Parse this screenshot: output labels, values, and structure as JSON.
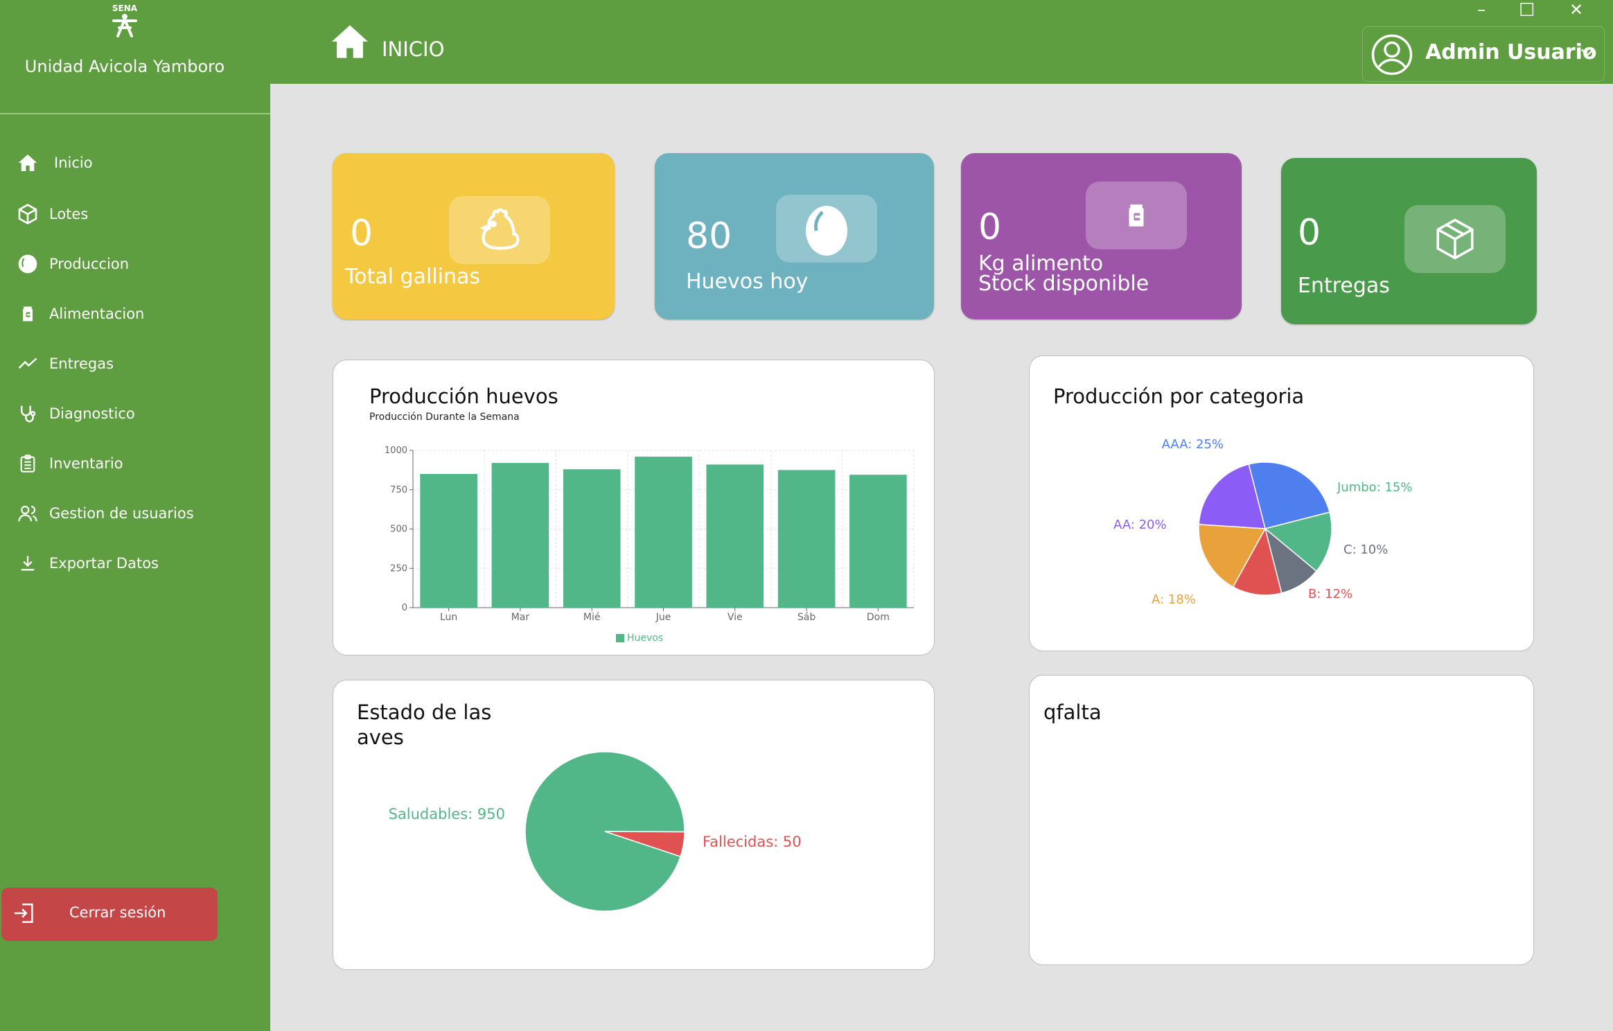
{
  "window_controls": {
    "minimize": "–",
    "maximize": "☐",
    "close": "✕"
  },
  "sidebar": {
    "logo_text": "SENA",
    "app_title": "Unidad Avicola Yamboro",
    "items": [
      {
        "label": "Inicio",
        "icon": "home-icon"
      },
      {
        "label": "Lotes",
        "icon": "box-icon"
      },
      {
        "label": "Produccion",
        "icon": "egg-icon"
      },
      {
        "label": "Alimentacion",
        "icon": "feed-jar-icon"
      },
      {
        "label": "Entregas",
        "icon": "trend-line-icon"
      },
      {
        "label": "Diagnostico",
        "icon": "stethoscope-icon"
      },
      {
        "label": "Inventario",
        "icon": "clipboard-list-icon"
      },
      {
        "label": "Gestion de usuarios",
        "icon": "users-icon"
      },
      {
        "label": "Exportar Datos",
        "icon": "download-icon"
      }
    ],
    "logout_label": "Cerrar sesión"
  },
  "header": {
    "page_title": "INICIO",
    "user_name": "Admin Usuario"
  },
  "cards": [
    {
      "value": "0",
      "label": "Total gallinas",
      "color": "#f5c842",
      "icon": "chicken-icon"
    },
    {
      "value": "80",
      "label": "Huevos hoy",
      "color": "#6fb2bf",
      "icon": "egg-icon"
    },
    {
      "value": "0",
      "label": "Kg alimento\nStock disponible",
      "color": "#9d55a8",
      "icon": "feed-jar-icon"
    },
    {
      "value": "0",
      "label": "Entregas",
      "color": "#4a9a4c",
      "icon": "box-icon"
    }
  ],
  "panels": {
    "production_title": "Producción huevos",
    "category_title": "Producción por categoria",
    "birds_title": "Estado de las\naves",
    "empty_title": "qfalta"
  },
  "chart_data": [
    {
      "type": "bar",
      "title": "Producción huevos",
      "subtitle": "Producción Durante la Semana",
      "categories": [
        "Lun",
        "Mar",
        "Mié",
        "Jue",
        "Vie",
        "Sáb",
        "Dom"
      ],
      "series": [
        {
          "name": "Huevos",
          "values": [
            850,
            920,
            880,
            960,
            910,
            875,
            845
          ],
          "color": "#52b788"
        }
      ],
      "yticks": [
        0,
        250,
        500,
        750,
        1000
      ],
      "ylim": [
        0,
        1000
      ],
      "grid": true,
      "legend": "bottom"
    },
    {
      "type": "pie",
      "title": "Producción por categoria",
      "slices": [
        {
          "label": "AAA: 25%",
          "value": 25,
          "color": "#4f7fee"
        },
        {
          "label": "Jumbo: 15%",
          "value": 15,
          "color": "#52b788"
        },
        {
          "label": "C: 10%",
          "value": 10,
          "color": "#6b7280"
        },
        {
          "label": "B: 12%",
          "value": 12,
          "color": "#e05252"
        },
        {
          "label": "A: 18%",
          "value": 18,
          "color": "#e9a23b"
        },
        {
          "label": "AA: 20%",
          "value": 20,
          "color": "#8b5cf6"
        }
      ]
    },
    {
      "type": "pie",
      "title": "Estado de las aves",
      "slices": [
        {
          "label": "Saludables: 950",
          "value": 950,
          "color": "#52b788"
        },
        {
          "label": "Fallecidas: 50",
          "value": 50,
          "color": "#e05252"
        }
      ]
    }
  ]
}
